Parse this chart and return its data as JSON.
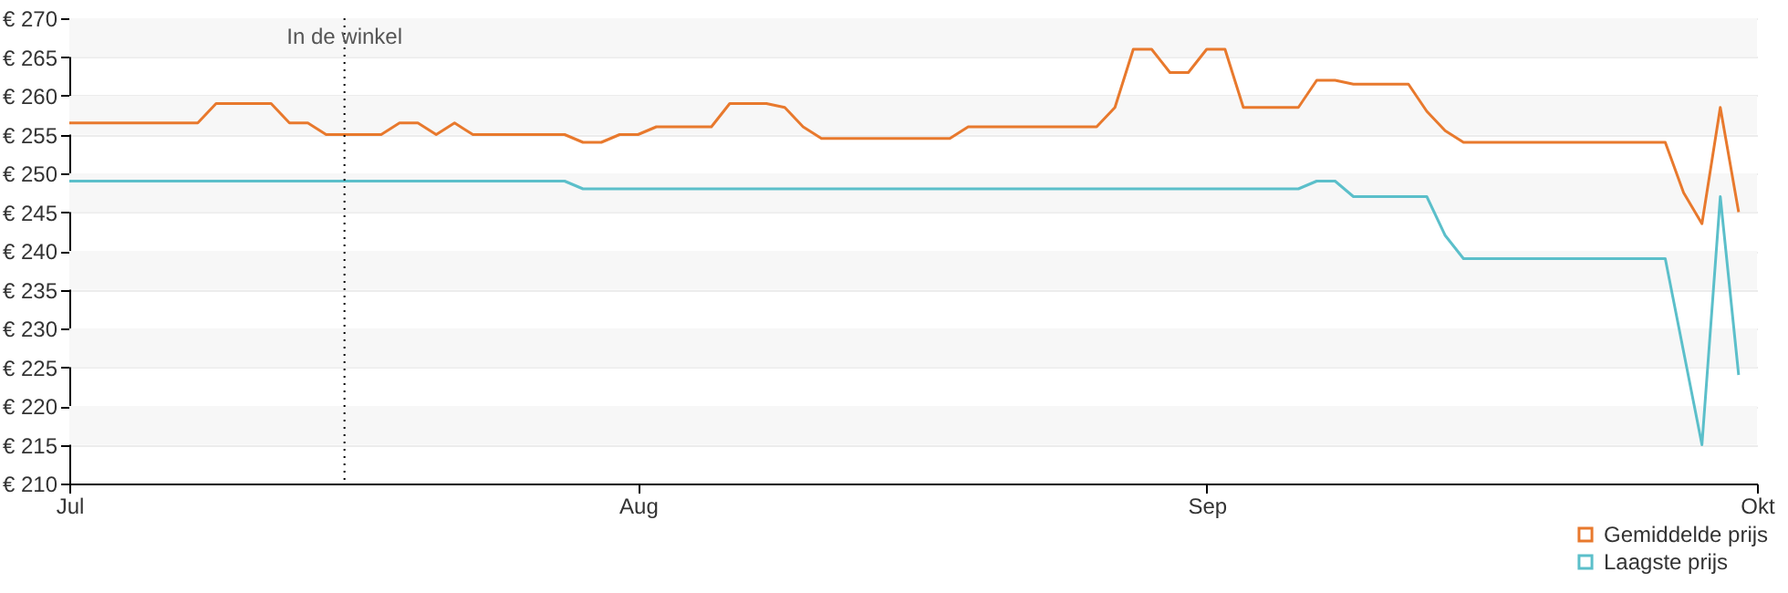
{
  "chart_data": {
    "type": "line",
    "xlim": [
      "--07-01",
      "--10-01"
    ],
    "xticks": [
      {
        "value": "--07-01",
        "label": "Jul"
      },
      {
        "value": "--08-01",
        "label": "Aug"
      },
      {
        "value": "--09-01",
        "label": "Sep"
      },
      {
        "value": "--10-01",
        "label": "Okt"
      }
    ],
    "ylim": [
      210,
      270
    ],
    "yticks": [
      {
        "value": 210,
        "label": "€ 210"
      },
      {
        "value": 215,
        "label": "€ 215"
      },
      {
        "value": 220,
        "label": "€ 220"
      },
      {
        "value": 225,
        "label": "€ 225"
      },
      {
        "value": 230,
        "label": "€ 230"
      },
      {
        "value": 235,
        "label": "€ 235"
      },
      {
        "value": 240,
        "label": "€ 240"
      },
      {
        "value": 245,
        "label": "€ 245"
      },
      {
        "value": 250,
        "label": "€ 250"
      },
      {
        "value": 255,
        "label": "€ 255"
      },
      {
        "value": 260,
        "label": "€ 260"
      },
      {
        "value": 265,
        "label": "€ 265"
      },
      {
        "value": 270,
        "label": "€ 270"
      }
    ],
    "grid": "y",
    "legend": "bottom right",
    "marker": "none",
    "line_style": "solid",
    "ref_lines": [
      {
        "axis": "x",
        "value": "--07-16",
        "label": "In de winkel",
        "line_style": "dotted",
        "color": "#000000"
      }
    ],
    "series": [
      {
        "name": "Gemiddelde prijs",
        "color": "#e8792d",
        "x": [
          "--07-01",
          "--07-08",
          "--07-09",
          "--07-12",
          "--07-13",
          "--07-14",
          "--07-15",
          "--07-18",
          "--07-19",
          "--07-20",
          "--07-21",
          "--07-22",
          "--07-23",
          "--07-28",
          "--07-29",
          "--07-30",
          "--07-31",
          "--08-01",
          "--08-02",
          "--08-05",
          "--08-06",
          "--08-08",
          "--08-09",
          "--08-10",
          "--08-11",
          "--08-18",
          "--08-19",
          "--08-26",
          "--08-27",
          "--08-28",
          "--08-29",
          "--08-30",
          "--08-31",
          "--09-01",
          "--09-02",
          "--09-03",
          "--09-06",
          "--09-07",
          "--09-08",
          "--09-09",
          "--09-12",
          "--09-13",
          "--09-14",
          "--09-15",
          "--09-26",
          "--09-27",
          "--09-28",
          "--09-29",
          "--09-30"
        ],
        "values": [
          256.5,
          256.5,
          259,
          259,
          256.5,
          256.5,
          255,
          255,
          256.5,
          256.5,
          255,
          256.5,
          255,
          255,
          254,
          254,
          255,
          255,
          256,
          256,
          259,
          259,
          258.5,
          256,
          254.5,
          254.5,
          256,
          256,
          258.5,
          266,
          266,
          263,
          263,
          266,
          266,
          258.5,
          258.5,
          262,
          262,
          261.5,
          261.5,
          258,
          255.5,
          254,
          254,
          247.5,
          243.5,
          258.5,
          245
        ]
      },
      {
        "name": "Laagste prijs",
        "color": "#5bbfca",
        "x": [
          "--07-01",
          "--07-28",
          "--07-29",
          "--09-06",
          "--09-07",
          "--09-08",
          "--09-09",
          "--09-13",
          "--09-14",
          "--09-15",
          "--09-26",
          "--09-28",
          "--09-29",
          "--09-30"
        ],
        "values": [
          249,
          249,
          248,
          248,
          249,
          249,
          247,
          247,
          242,
          239,
          239,
          215,
          247,
          224
        ]
      }
    ]
  }
}
